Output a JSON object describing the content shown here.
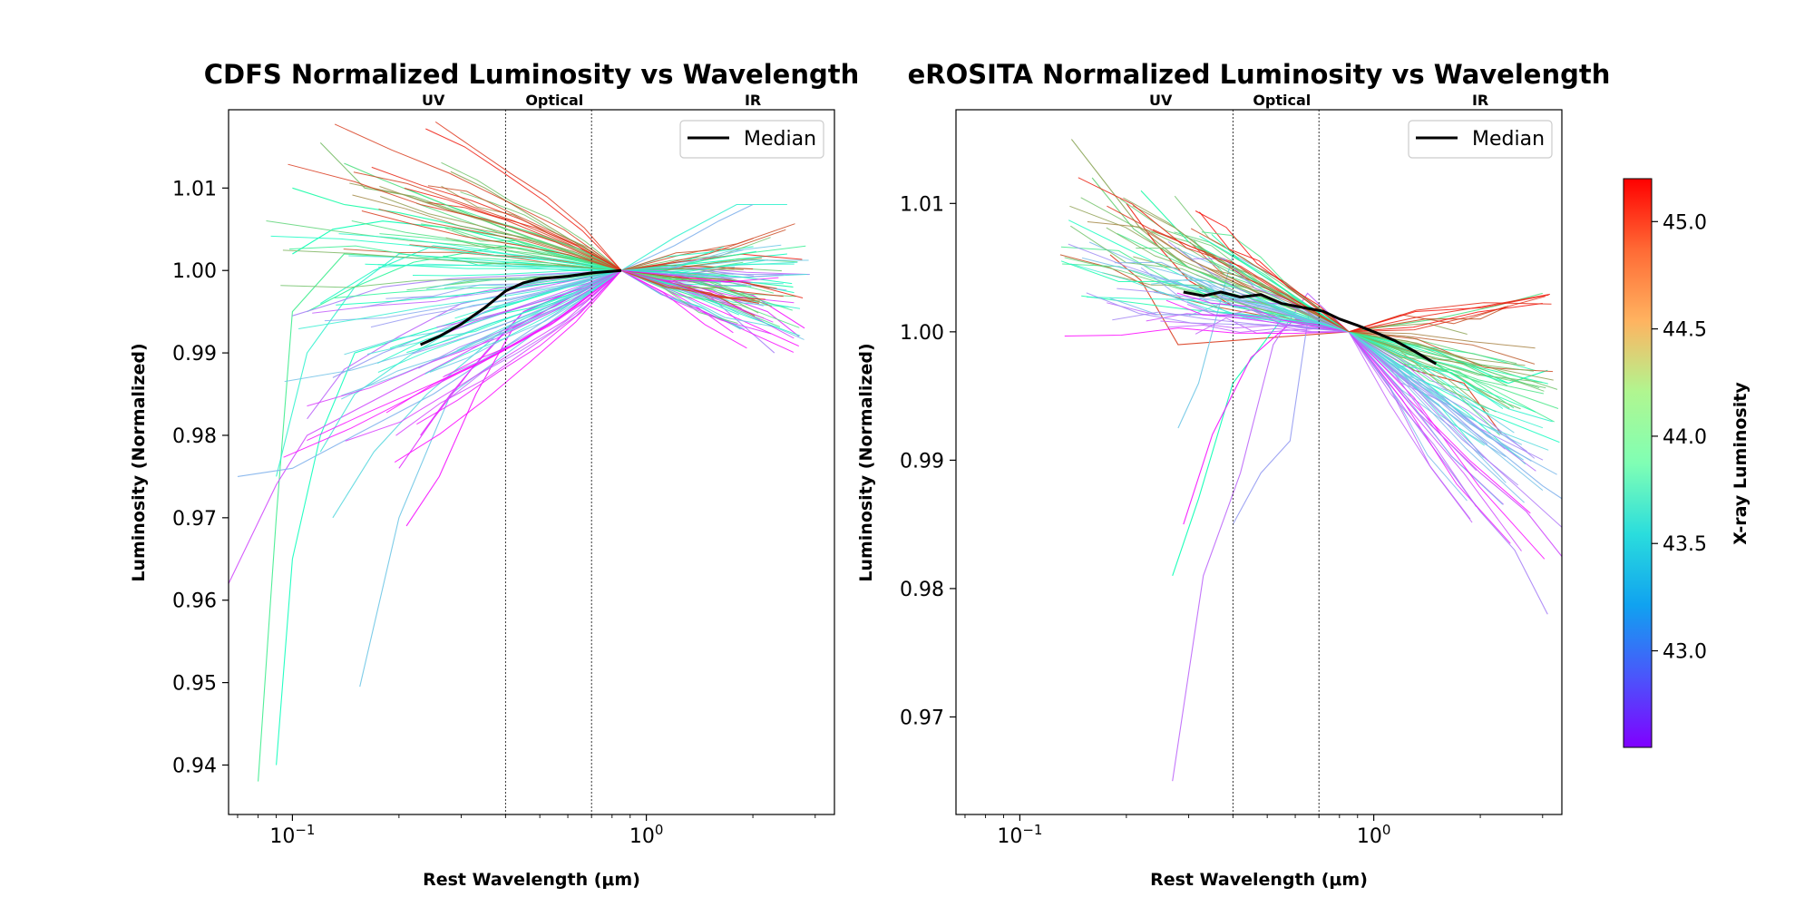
{
  "chart_data": [
    {
      "type": "line",
      "title": "CDFS Normalized Luminosity vs Wavelength",
      "xlabel": "Rest Wavelength (μm)",
      "ylabel": "Luminosity (Normalized)",
      "xscale": "log",
      "xlim": [
        0.066,
        3.4
      ],
      "ylim": [
        0.934,
        1.0195
      ],
      "x_ticks": [
        {
          "value": 0.1,
          "base": "10",
          "exp": "−1"
        },
        {
          "value": 1.0,
          "base": "10",
          "exp": "0"
        }
      ],
      "y_ticks": [
        0.94,
        0.95,
        0.96,
        0.97,
        0.98,
        0.99,
        1.0,
        1.01
      ],
      "y_tick_labels": [
        "0.94",
        "0.95",
        "0.96",
        "0.97",
        "0.98",
        "0.99",
        "1.00",
        "1.01"
      ],
      "regions": [
        {
          "label": "UV",
          "x": 0.25
        },
        {
          "label": "Optical",
          "x": 0.55
        },
        {
          "label": "IR",
          "x": 2.0
        }
      ],
      "boundaries": [
        0.4,
        0.7
      ],
      "legend": {
        "position": "top-right",
        "entries": [
          "Median"
        ]
      },
      "median": {
        "name": "Median",
        "x": [
          0.23,
          0.26,
          0.3,
          0.35,
          0.4,
          0.45,
          0.5,
          0.6,
          0.7,
          0.8,
          0.85
        ],
        "y": [
          0.991,
          0.992,
          0.9935,
          0.9955,
          0.9975,
          0.9985,
          0.999,
          0.9993,
          0.9997,
          0.9999,
          1.0
        ]
      },
      "series_count": 110,
      "pivot_x": 0.85,
      "series": [
        {
          "c": 44.5,
          "x": [
            0.12,
            0.16,
            0.22,
            0.35,
            0.85
          ],
          "y": [
            1.0155,
            1.01,
            1.009,
            1.006,
            1.0
          ]
        },
        {
          "c": 44.3,
          "x": [
            0.14,
            0.18,
            0.27,
            0.4,
            0.85
          ],
          "y": [
            1.013,
            1.011,
            1.008,
            1.005,
            1.0
          ]
        },
        {
          "c": 44.6,
          "x": [
            0.28,
            0.35,
            0.85
          ],
          "y": [
            1.012,
            1.01,
            1.0
          ]
        },
        {
          "c": 44.0,
          "x": [
            0.1,
            0.14,
            0.2,
            0.33,
            0.85
          ],
          "y": [
            1.01,
            1.008,
            1.007,
            1.005,
            1.0
          ]
        },
        {
          "c": 44.2,
          "x": [
            0.08,
            0.09,
            0.1,
            0.14,
            0.85
          ],
          "y": [
            0.938,
            0.97,
            0.995,
            1.002,
            1.0
          ]
        },
        {
          "c": 43.8,
          "x": [
            0.09,
            0.1,
            0.12,
            0.15,
            0.85
          ],
          "y": [
            0.94,
            0.965,
            0.98,
            0.99,
            1.0
          ]
        },
        {
          "c": 43.6,
          "x": [
            0.09,
            0.11,
            0.15,
            0.2,
            0.85
          ],
          "y": [
            0.975,
            0.99,
            0.998,
            1.002,
            1.0
          ]
        },
        {
          "c": 43.9,
          "x": [
            0.1,
            0.13,
            0.18,
            0.3,
            0.85
          ],
          "y": [
            1.002,
            1.005,
            1.006,
            1.005,
            1.0
          ]
        },
        {
          "c": 42.8,
          "x": [
            0.066,
            0.09,
            0.11,
            0.85
          ],
          "y": [
            0.962,
            0.974,
            0.98,
            1.0
          ]
        },
        {
          "c": 43.2,
          "x": [
            0.07,
            0.1,
            0.15,
            0.25,
            0.85
          ],
          "y": [
            0.975,
            0.976,
            0.98,
            0.985,
            1.0
          ]
        },
        {
          "c": 43.3,
          "x": [
            0.155,
            0.2,
            0.28,
            0.85
          ],
          "y": [
            0.9495,
            0.97,
            0.985,
            1.0
          ]
        },
        {
          "c": 42.6,
          "x": [
            0.21,
            0.26,
            0.33,
            0.42,
            0.85
          ],
          "y": [
            0.969,
            0.975,
            0.985,
            0.993,
            1.0
          ]
        },
        {
          "c": 42.7,
          "x": [
            0.2,
            0.25,
            0.32,
            0.45,
            0.85
          ],
          "y": [
            0.976,
            0.982,
            0.988,
            0.995,
            1.0
          ]
        },
        {
          "c": 43.4,
          "x": [
            0.13,
            0.17,
            0.24,
            0.4,
            0.85
          ],
          "y": [
            0.97,
            0.978,
            0.985,
            0.993,
            1.0
          ]
        },
        {
          "c": 43.5,
          "x": [
            0.12,
            0.15,
            0.22,
            0.35,
            0.85
          ],
          "y": [
            0.978,
            0.985,
            0.99,
            0.995,
            1.0
          ]
        },
        {
          "c": 42.9,
          "x": [
            0.11,
            0.14,
            0.2,
            0.3,
            0.85
          ],
          "y": [
            0.982,
            0.988,
            0.992,
            0.996,
            1.0
          ]
        },
        {
          "c": 44.1,
          "x": [
            0.11,
            0.15,
            0.22,
            0.4,
            0.85
          ],
          "y": [
            0.995,
            0.998,
            1.001,
            1.003,
            1.0
          ]
        },
        {
          "c": 43.7,
          "x": [
            0.12,
            0.17,
            0.25,
            0.4,
            0.85
          ],
          "y": [
            0.996,
            1.0,
            1.003,
            1.002,
            1.0
          ]
        },
        {
          "c": 43.0,
          "x": [
            0.1,
            0.13,
            0.18,
            0.28,
            0.85
          ],
          "y": [
            0.9945,
            0.996,
            0.998,
            0.999,
            1.0
          ]
        },
        {
          "c": 43.1,
          "x": [
            0.13,
            0.18,
            0.27,
            0.4,
            0.85
          ],
          "y": [
            0.987,
            0.99,
            0.993,
            0.996,
            1.0
          ]
        },
        {
          "c": 42.7,
          "x": [
            0.23,
            0.28,
            0.35,
            0.45,
            0.85
          ],
          "y": [
            0.98,
            0.985,
            0.99,
            0.995,
            1.0
          ]
        },
        {
          "c": 43.6,
          "x": [
            0.85,
            1.2,
            1.8,
            2.5
          ],
          "y": [
            1.0,
            1.004,
            1.008,
            1.008
          ]
        },
        {
          "c": 43.2,
          "x": [
            0.85,
            1.2,
            1.6,
            2.0
          ],
          "y": [
            1.0,
            1.003,
            1.006,
            1.008
          ]
        },
        {
          "c": 42.6,
          "x": [
            0.85,
            1.3,
            2.0,
            2.8
          ],
          "y": [
            1.0,
            0.999,
            0.997,
            0.993
          ]
        },
        {
          "c": 42.7,
          "x": [
            0.85,
            1.4,
            2.2,
            2.7
          ],
          "y": [
            1.0,
            0.998,
            0.995,
            0.992
          ]
        },
        {
          "c": 43.0,
          "x": [
            0.85,
            1.5,
            2.3
          ],
          "y": [
            1.0,
            0.997,
            0.99
          ]
        },
        {
          "c": 43.8,
          "x": [
            0.85,
            1.5,
            2.5
          ],
          "y": [
            1.0,
            1.001,
            1.002
          ]
        },
        {
          "c": 44.0,
          "x": [
            0.85,
            1.6,
            2.6
          ],
          "y": [
            1.0,
            0.999,
            0.998
          ]
        }
      ]
    },
    {
      "type": "line",
      "title": "eROSITA Normalized Luminosity vs Wavelength",
      "xlabel": "Rest Wavelength (μm)",
      "ylabel": "Luminosity (Normalized)",
      "xscale": "log",
      "xlim": [
        0.066,
        3.4
      ],
      "ylim": [
        0.9624,
        1.0173
      ],
      "x_ticks": [
        {
          "value": 0.1,
          "base": "10",
          "exp": "−1"
        },
        {
          "value": 1.0,
          "base": "10",
          "exp": "0"
        }
      ],
      "y_ticks": [
        0.97,
        0.98,
        0.99,
        1.0,
        1.01
      ],
      "y_tick_labels": [
        "0.97",
        "0.98",
        "0.99",
        "1.00",
        "1.01"
      ],
      "regions": [
        {
          "label": "UV",
          "x": 0.25
        },
        {
          "label": "Optical",
          "x": 0.55
        },
        {
          "label": "IR",
          "x": 2.0
        }
      ],
      "boundaries": [
        0.4,
        0.7
      ],
      "legend": {
        "position": "top-right",
        "entries": [
          "Median"
        ]
      },
      "median": {
        "name": "Median",
        "x": [
          0.29,
          0.33,
          0.37,
          0.42,
          0.48,
          0.55,
          0.63,
          0.72,
          0.8,
          0.9,
          1.0,
          1.15,
          1.3,
          1.5
        ],
        "y": [
          1.0031,
          1.0028,
          1.0031,
          1.0027,
          1.0029,
          1.0022,
          1.0019,
          1.0016,
          1.001,
          1.0005,
          1.0,
          0.9993,
          0.9985,
          0.9975
        ]
      },
      "series_count": 90,
      "pivot_x": 0.85,
      "series": [
        {
          "c": 44.6,
          "x": [
            0.14,
            0.17,
            0.22,
            0.3,
            0.85
          ],
          "y": [
            1.015,
            1.012,
            1.008,
            1.005,
            1.0
          ]
        },
        {
          "c": 45.1,
          "x": [
            0.2,
            0.24,
            0.3,
            0.4,
            0.85
          ],
          "y": [
            1.01,
            1.007,
            1.004,
            1.002,
            1.0
          ]
        },
        {
          "c": 44.9,
          "x": [
            0.13,
            0.18,
            0.25,
            0.35,
            0.85
          ],
          "y": [
            1.006,
            1.005,
            1.003,
            1.002,
            1.0
          ]
        },
        {
          "c": 45.0,
          "x": [
            0.18,
            0.22,
            0.28,
            0.85
          ],
          "y": [
            1.006,
            1.004,
            0.999,
            1.0
          ]
        },
        {
          "c": 44.4,
          "x": [
            0.16,
            0.21,
            0.3,
            0.85
          ],
          "y": [
            1.012,
            1.008,
            1.005,
            1.0
          ]
        },
        {
          "c": 44.0,
          "x": [
            0.22,
            0.3,
            0.45,
            0.85
          ],
          "y": [
            1.011,
            1.007,
            1.004,
            1.0
          ]
        },
        {
          "c": 42.9,
          "x": [
            0.27,
            0.33,
            0.42,
            0.52,
            0.65,
            0.85
          ],
          "y": [
            0.965,
            0.981,
            0.989,
            0.999,
            1.003,
            1.0
          ]
        },
        {
          "c": 43.1,
          "x": [
            0.4,
            0.48,
            0.58,
            0.66,
            0.85
          ],
          "y": [
            0.985,
            0.989,
            0.9915,
            1.002,
            1.0
          ]
        },
        {
          "c": 43.9,
          "x": [
            0.27,
            0.32,
            0.4,
            0.55,
            0.85
          ],
          "y": [
            0.981,
            0.987,
            0.996,
            1.001,
            1.0
          ]
        },
        {
          "c": 42.6,
          "x": [
            0.29,
            0.35,
            0.45,
            0.6,
            0.85
          ],
          "y": [
            0.985,
            0.992,
            0.998,
            1.001,
            1.0
          ]
        },
        {
          "c": 43.3,
          "x": [
            0.28,
            0.32,
            0.4,
            0.55,
            0.85
          ],
          "y": [
            0.9925,
            0.996,
            1.006,
            1.004,
            1.0
          ]
        },
        {
          "c": 42.8,
          "x": [
            0.85,
            1.3,
            2.0,
            2.7,
            3.4
          ],
          "y": [
            1.0,
            0.994,
            0.989,
            0.986,
            0.9825
          ]
        },
        {
          "c": 43.0,
          "x": [
            0.85,
            1.3,
            2.0,
            2.5,
            3.1
          ],
          "y": [
            1.0,
            0.993,
            0.986,
            0.983,
            0.978
          ]
        },
        {
          "c": 43.2,
          "x": [
            0.85,
            1.4,
            2.2,
            3.0,
            3.4
          ],
          "y": [
            1.0,
            0.995,
            0.991,
            0.988,
            0.987
          ]
        },
        {
          "c": 43.6,
          "x": [
            0.85,
            1.5,
            2.4,
            3.2
          ],
          "y": [
            1.0,
            0.997,
            0.994,
            0.993
          ]
        },
        {
          "c": 43.9,
          "x": [
            0.85,
            1.5,
            2.4,
            3.1
          ],
          "y": [
            1.0,
            0.9985,
            0.996,
            0.997
          ]
        },
        {
          "c": 44.3,
          "x": [
            0.85,
            1.5,
            2.2,
            3.0
          ],
          "y": [
            1.0,
            1.001,
            1.002,
            1.003
          ]
        },
        {
          "c": 44.9,
          "x": [
            0.85,
            1.4,
            2.0,
            2.4
          ],
          "y": [
            1.0,
            1.001,
            1.001,
            1.002
          ]
        },
        {
          "c": 45.0,
          "x": [
            0.85,
            1.3,
            1.8,
            2.3
          ],
          "y": [
            1.0,
            0.997,
            0.996,
            0.992
          ]
        },
        {
          "c": 44.5,
          "x": [
            0.85,
            1.4,
            2.1,
            2.6
          ],
          "y": [
            1.0,
            0.998,
            0.995,
            0.994
          ]
        }
      ]
    }
  ],
  "colorbar": {
    "label": "X-ray Luminosity",
    "min": 42.55,
    "max": 45.2,
    "ticks": [
      43.0,
      43.5,
      44.0,
      44.5,
      45.0
    ],
    "tick_labels": [
      "43.0",
      "43.5",
      "44.0",
      "44.5",
      "45.0"
    ],
    "colormap": "rainbow"
  }
}
